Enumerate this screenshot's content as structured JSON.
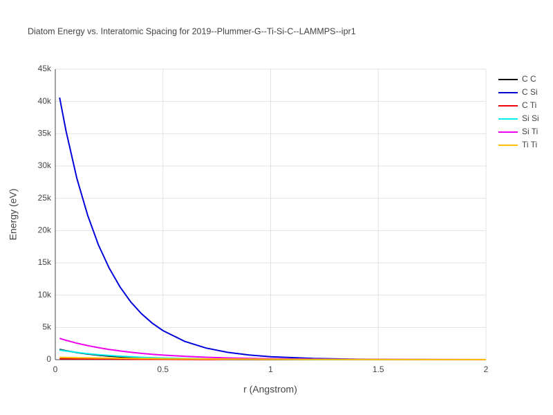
{
  "chart_data": {
    "type": "line",
    "title": "Diatom Energy vs. Interatomic Spacing for 2019--Plummer-G--Ti-Si-C--LAMMPS--ipr1",
    "x_label": "r (Angstrom)",
    "y_label": "Energy (eV)",
    "x": [
      0.02,
      0.05,
      0.1,
      0.15,
      0.2,
      0.25,
      0.3,
      0.35,
      0.4,
      0.45,
      0.5,
      0.6,
      0.7,
      0.8,
      0.9,
      1.0,
      1.2,
      1.4,
      1.6,
      1.8,
      2.0
    ],
    "series": [
      {
        "name": "C C",
        "color": "#000000",
        "values": [
          1600,
          1380,
          1100,
          870,
          690,
          550,
          440,
          350,
          280,
          220,
          175,
          110,
          70,
          45,
          28,
          18,
          7,
          3,
          1,
          0,
          0
        ]
      },
      {
        "name": "C Si",
        "color": "#0000dd",
        "values": [
          40600,
          35400,
          28100,
          22400,
          17800,
          14200,
          11300,
          8960,
          7120,
          5660,
          4500,
          2850,
          1800,
          1140,
          722,
          456,
          183,
          73,
          29,
          12,
          5
        ]
      },
      {
        "name": "C Ti",
        "color": "#ee0000",
        "values": [
          150,
          140,
          125,
          110,
          100,
          90,
          80,
          70,
          60,
          55,
          50,
          40,
          30,
          25,
          20,
          15,
          10,
          5,
          3,
          2,
          1
        ]
      },
      {
        "name": "Si Si",
        "color": "#00eeee",
        "values": [
          1500,
          1340,
          1120,
          930,
          780,
          650,
          540,
          450,
          380,
          310,
          260,
          180,
          125,
          87,
          60,
          42,
          20,
          10,
          5,
          2,
          1
        ]
      },
      {
        "name": "Si Ti",
        "color": "#ee00ee",
        "values": [
          3300,
          3000,
          2550,
          2180,
          1860,
          1580,
          1350,
          1150,
          980,
          834,
          710,
          516,
          374,
          271,
          197,
          143,
          75,
          40,
          21,
          11,
          6
        ]
      },
      {
        "name": "Ti Ti",
        "color": "#ffc000",
        "values": [
          350,
          330,
          300,
          280,
          260,
          240,
          220,
          200,
          180,
          170,
          150,
          130,
          110,
          90,
          80,
          65,
          45,
          30,
          20,
          15,
          10
        ]
      }
    ],
    "xlim": [
      0,
      2
    ],
    "xticks": [
      0,
      0.5,
      1,
      1.5,
      2
    ],
    "ylim": [
      0,
      45000
    ],
    "yticks": [
      0,
      {
        "value": 5000,
        "label": "5k"
      },
      {
        "value": 10000,
        "label": "10k"
      },
      {
        "value": 15000,
        "label": "15k"
      },
      {
        "value": 20000,
        "label": "20k"
      },
      {
        "value": 25000,
        "label": "25k"
      },
      {
        "value": 30000,
        "label": "30k"
      },
      {
        "value": 35000,
        "label": "35k"
      },
      {
        "value": 40000,
        "label": "40k"
      },
      {
        "value": 45000,
        "label": "45k"
      }
    ],
    "grid": true
  }
}
